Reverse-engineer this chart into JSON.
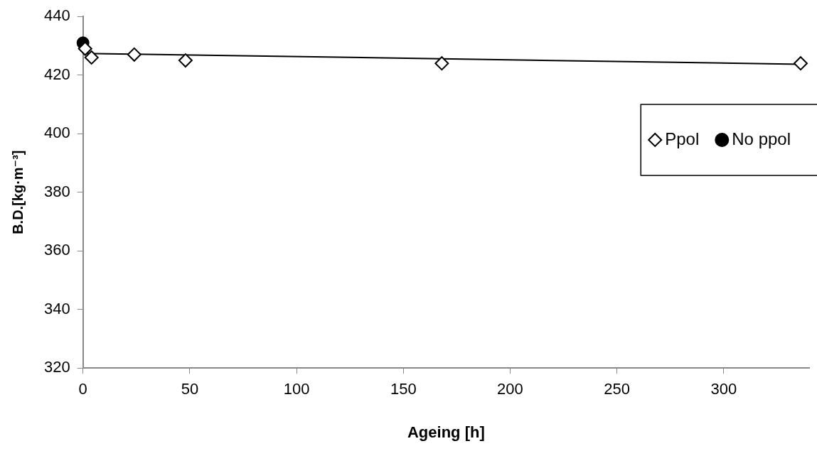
{
  "chart_data": {
    "type": "scatter",
    "xlabel": "Ageing [h]",
    "ylabel": "B.D.[kg·m⁻³]",
    "xlim": [
      0,
      340
    ],
    "xticks": [
      0,
      50,
      100,
      150,
      200,
      250,
      300
    ],
    "ylim": [
      320,
      440
    ],
    "yticks": [
      320,
      340,
      360,
      380,
      400,
      420,
      440
    ],
    "grid": false,
    "legend": "right",
    "series": [
      {
        "name": "Ppol",
        "type": "scatter",
        "marker": "diamond",
        "color": "#000000",
        "x": [
          1,
          4,
          24,
          48,
          168,
          336
        ],
        "values": [
          429,
          426,
          427,
          425,
          424,
          424
        ]
      },
      {
        "name": "No ppol",
        "type": "scatter",
        "marker": "circle",
        "color": "#000000",
        "x": [
          0
        ],
        "values": [
          431
        ]
      },
      {
        "type": "line",
        "marker": "none",
        "line_style": "solid",
        "color": "#000000",
        "x": [
          0,
          336
        ],
        "values": [
          427.4,
          423.7
        ]
      }
    ]
  }
}
